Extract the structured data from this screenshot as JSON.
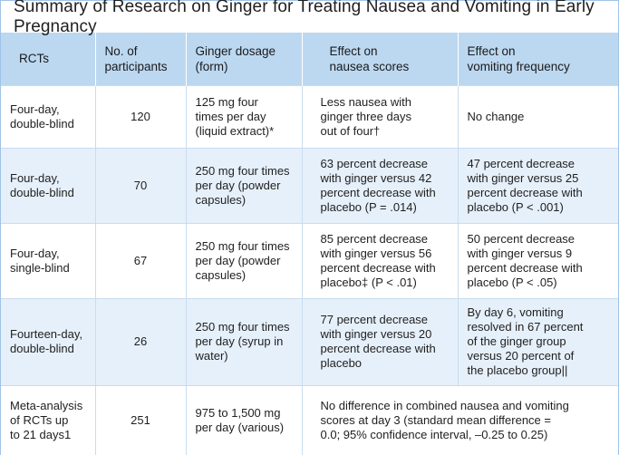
{
  "title": "Summary of Research on Ginger for Treating Nausea and Vomiting in Early Pregnancy",
  "headers": {
    "rcts": "RCTs",
    "participants": [
      "No. of",
      "participants"
    ],
    "dosage": [
      "Ginger dosage",
      "(form)"
    ],
    "nausea": [
      "Effect on",
      "nausea scores"
    ],
    "vomiting": [
      "Effect on",
      "vomiting frequency"
    ]
  },
  "rows": [
    {
      "rct": [
        "Four-day,",
        "double-blind"
      ],
      "participants": "120",
      "dosage": [
        "125 mg four",
        "times per day",
        "(liquid extract)*"
      ],
      "nausea": [
        "Less nausea with",
        "ginger three days",
        "out of four†"
      ],
      "vomiting": [
        "No change"
      ]
    },
    {
      "rct": [
        "Four-day,",
        "double-blind"
      ],
      "participants": "70",
      "dosage": [
        "250 mg four times",
        "per day (powder",
        "capsules)"
      ],
      "nausea": [
        " 63 percent decrease",
        "with ginger versus 42",
        "percent decrease with",
        "placebo (P = .014)"
      ],
      "vomiting": [
        "47 percent decrease",
        "with ginger versus 25",
        "percent decrease with",
        "placebo (P < .001)"
      ]
    },
    {
      "rct": [
        "Four-day,",
        "single-blind"
      ],
      "participants": "67",
      "dosage": [
        "250 mg four times",
        "per day (powder",
        "capsules)"
      ],
      "nausea": [
        " 85 percent decrease",
        "with ginger versus 56",
        "percent decrease with",
        "placebo‡ (P < .01)"
      ],
      "vomiting": [
        "50 percent decrease",
        "with ginger versus 9",
        "percent decrease with",
        "placebo (P < .05)"
      ]
    },
    {
      "rct": [
        "Fourteen-day,",
        "double-blind"
      ],
      "participants": "26",
      "dosage": [
        "250 mg four times",
        "per day (syrup in",
        "water)"
      ],
      "nausea": [
        "77 percent decrease",
        "with ginger versus 20",
        "percent decrease with",
        "placebo"
      ],
      "vomiting": [
        "By day 6, vomiting",
        "resolved in 67 percent",
        "of the ginger group",
        "versus 20 percent of",
        "the placebo group||"
      ]
    }
  ],
  "meta_row": {
    "rct": [
      "Meta-analysis",
      "of RCTs up",
      "to 21 days1"
    ],
    "participants": "251",
    "dosage": [
      "975 to 1,500 mg",
      "per day (various)"
    ],
    "combined": [
      "No difference in combined nausea and vomiting",
      "scores at day 3 (standard mean difference =",
      "0.0; 95% confidence interval, –0.25 to 0.25)"
    ]
  }
}
